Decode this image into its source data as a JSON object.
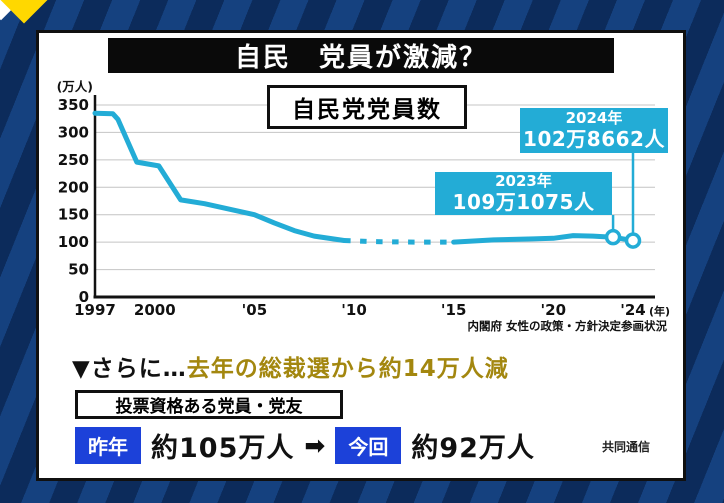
{
  "header": {
    "title": "自民　党員が激減？"
  },
  "chart": {
    "title_box": "自民党党員数",
    "source": "内閣府 女性の政策・方針決定参画状況",
    "callouts": [
      {
        "year_label": "2023年",
        "value_label": "109万1075人"
      },
      {
        "year_label": "2024年",
        "value_label": "102万8662人"
      }
    ]
  },
  "chart_data": {
    "type": "line",
    "title": "自民党党員数",
    "unit_label": "(万人)",
    "x_suffix": "(年)",
    "ylim": [
      0,
      350
    ],
    "yticks": [
      0,
      50,
      100,
      150,
      200,
      250,
      300,
      350
    ],
    "xticks": [
      {
        "year": 1997,
        "label": "1997"
      },
      {
        "year": 2000,
        "label": "2000"
      },
      {
        "year": 2005,
        "label": "'05"
      },
      {
        "year": 2010,
        "label": "'10"
      },
      {
        "year": 2015,
        "label": "'15"
      },
      {
        "year": 2020,
        "label": "'20"
      },
      {
        "year": 2024,
        "label": "'24"
      }
    ],
    "line_color": "#23acd6",
    "series": {
      "solid_early": [
        [
          1997,
          335
        ],
        [
          1997.9,
          334
        ],
        [
          1998.15,
          324
        ],
        [
          1999.1,
          246
        ],
        [
          2000.2,
          239
        ],
        [
          2001.3,
          177
        ],
        [
          2002.5,
          170
        ],
        [
          2004,
          158
        ],
        [
          2005,
          150
        ],
        [
          2006,
          135
        ],
        [
          2007,
          121
        ],
        [
          2008,
          111
        ],
        [
          2009.5,
          103
        ]
      ],
      "dotted_mid": [
        [
          2009.5,
          103
        ],
        [
          2011,
          101
        ],
        [
          2013,
          100
        ],
        [
          2015,
          100
        ]
      ],
      "solid_late": [
        [
          2015,
          100
        ],
        [
          2016,
          102
        ],
        [
          2017,
          104
        ],
        [
          2018,
          105
        ],
        [
          2019,
          106
        ],
        [
          2020,
          107
        ],
        [
          2021,
          112
        ],
        [
          2022,
          111
        ],
        [
          2023,
          109.1
        ],
        [
          2024,
          102.9
        ]
      ]
    },
    "markers": [
      [
        2023,
        109.1075
      ],
      [
        2024,
        102.8662
      ]
    ]
  },
  "bottom": {
    "headline_prefix": "▼さらに…",
    "headline_highlight": "去年の総裁選から約14万人減",
    "eligibility_label": "投票資格ある党員・党友",
    "items": {
      "last_year_label": "昨年",
      "last_year_value": "約105万人",
      "arrow": "➡",
      "current_label": "今回",
      "current_value": "約92万人"
    },
    "credit": "共同通信"
  },
  "colors": {
    "accent_cyan": "#23acd6",
    "gold": "#a3870f",
    "deep_blue": "#1c41d9",
    "stripe_light": "#15417f",
    "stripe_dark": "#0c2b5b",
    "corner_yellow": "#ffd800"
  }
}
